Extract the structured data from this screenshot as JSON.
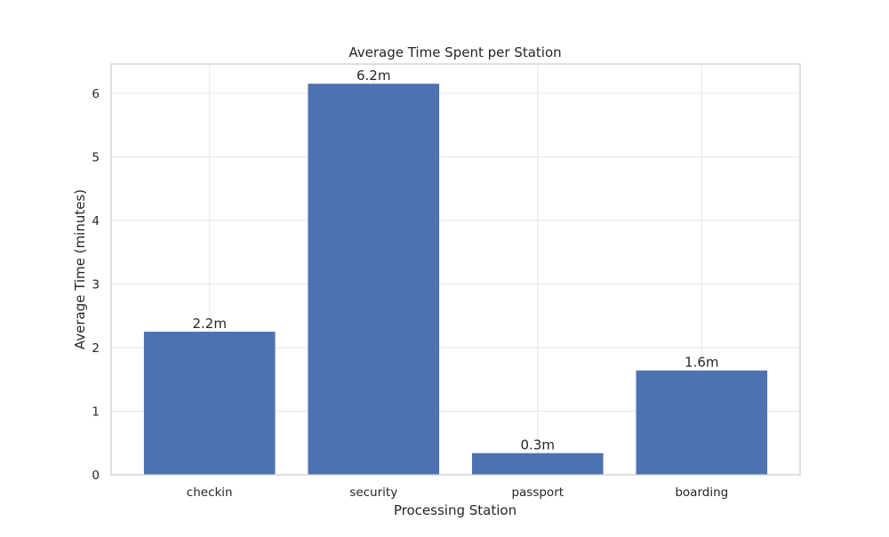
{
  "chart_data": {
    "type": "bar",
    "title": "Average Time Spent per Station",
    "xlabel": "Processing Station",
    "ylabel": "Average Time (minutes)",
    "categories": [
      "checkin",
      "security",
      "passport",
      "boarding"
    ],
    "values": [
      2.25,
      6.15,
      0.34,
      1.64
    ],
    "data_labels": [
      "2.2m",
      "6.2m",
      "0.3m",
      "1.6m"
    ],
    "ylim": [
      0,
      6.46
    ],
    "yticks": [
      0,
      1,
      2,
      3,
      4,
      5,
      6
    ],
    "grid": true,
    "legend": false,
    "colors": {
      "bar": "#4c72b0"
    }
  }
}
